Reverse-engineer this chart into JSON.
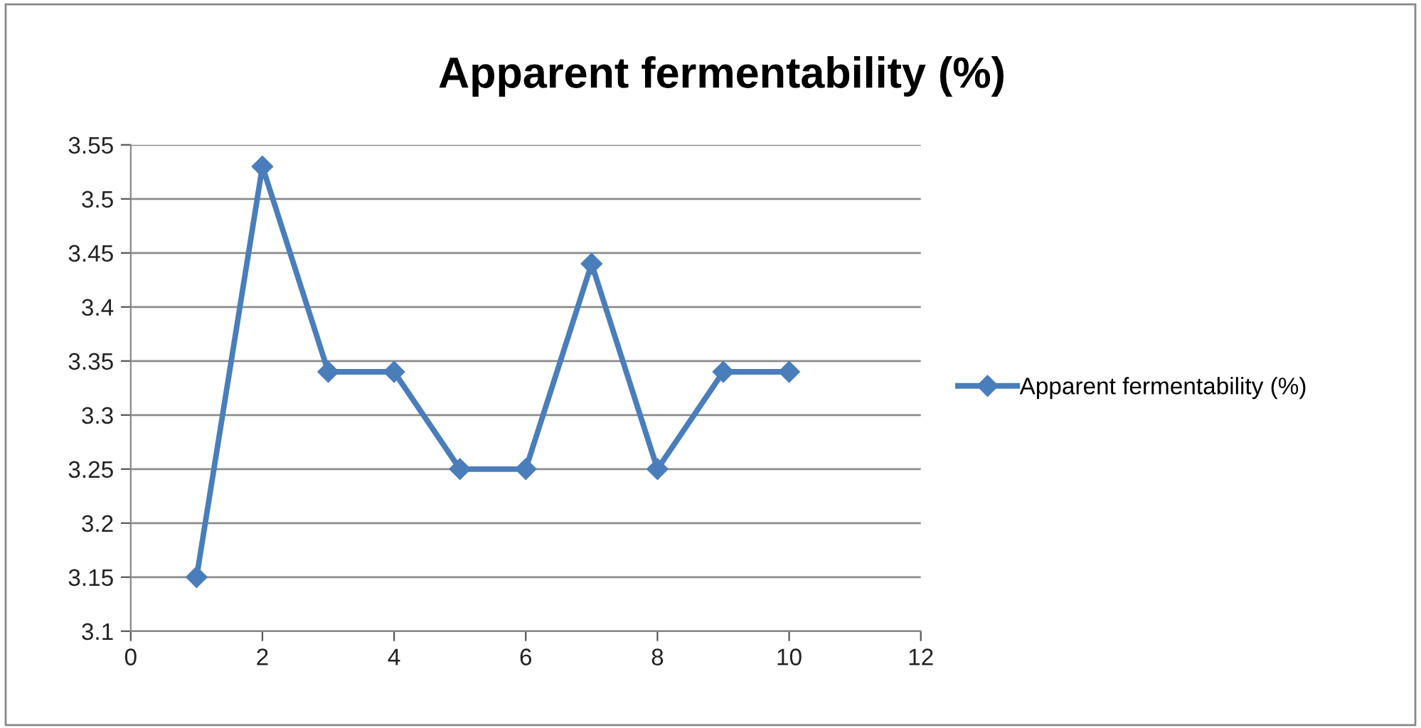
{
  "chart_data": {
    "type": "line",
    "title": "Apparent fermentability (%)",
    "x": [
      1,
      2,
      3,
      4,
      5,
      6,
      7,
      8,
      9,
      10
    ],
    "series": [
      {
        "name": "Apparent fermentability (%)",
        "color": "#4a7ebb",
        "values": [
          3.15,
          3.53,
          3.34,
          3.34,
          3.25,
          3.25,
          3.44,
          3.25,
          3.34,
          3.34
        ]
      }
    ],
    "xlim": [
      0,
      12
    ],
    "xticks": [
      0,
      2,
      4,
      6,
      8,
      10,
      12
    ],
    "ylim": [
      3.1,
      3.55
    ],
    "yticks": [
      3.1,
      3.15,
      3.2,
      3.25,
      3.3,
      3.35,
      3.4,
      3.45,
      3.5,
      3.55
    ],
    "grid": "y",
    "legend": "right",
    "marker": "diamond",
    "line_style": "solid"
  }
}
